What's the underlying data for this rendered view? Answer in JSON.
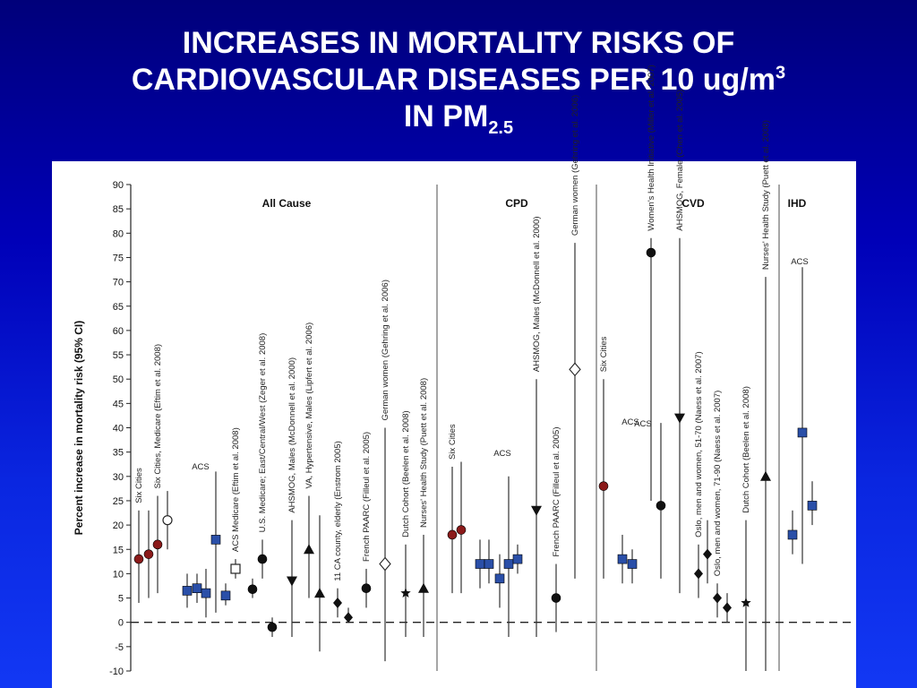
{
  "slide": {
    "title_line1": "INCREASES IN MORTALITY RISKS OF",
    "title_line2_main": "CARDIOVASCULAR DISEASES PER 10 ug/m",
    "title_line2_sup": "3",
    "title_line3_main": "IN PM",
    "title_line3_sub": "2.5"
  },
  "chart_data": {
    "type": "scatter",
    "ylabel": "Percent increase in mortality risk (95% CI)",
    "ylim": [
      -10,
      90
    ],
    "yticks": [
      -10,
      -5,
      0,
      5,
      10,
      15,
      20,
      25,
      30,
      35,
      40,
      45,
      50,
      55,
      60,
      65,
      70,
      75,
      80,
      85,
      90
    ],
    "reference_line": 0,
    "panels": [
      "All Cause",
      "CPD",
      "CVD",
      "IHD"
    ],
    "group_labels": [
      "ACS",
      "ACS",
      "ACS",
      "ACS",
      "ACS"
    ],
    "colors": {
      "six_cities": "#8b1a1a",
      "acs": "#2a4fa8",
      "black": "#111111",
      "errorbar": "#333333"
    },
    "points": [
      {
        "panel": "All Cause",
        "label": "Six Cities",
        "estimate": 13,
        "lower": 4,
        "upper": 23,
        "marker": "circle",
        "color": "#8b1a1a"
      },
      {
        "panel": "All Cause",
        "label": "",
        "estimate": 14,
        "lower": 5,
        "upper": 23,
        "marker": "circle",
        "color": "#8b1a1a"
      },
      {
        "panel": "All Cause",
        "label": "Six Cities, Medicare (Eftim et al. 2008)",
        "estimate": 16,
        "lower": 6,
        "upper": 26,
        "marker": "circle",
        "color": "#8b1a1a"
      },
      {
        "panel": "All Cause",
        "label": "",
        "estimate": 21,
        "lower": 15,
        "upper": 27,
        "marker": "open-circle",
        "color": "#111111"
      },
      {
        "panel": "All Cause",
        "label": "",
        "estimate": 6.5,
        "lower": 3,
        "upper": 10,
        "marker": "square",
        "color": "#2a4fa8"
      },
      {
        "panel": "All Cause",
        "label": "",
        "estimate": 7,
        "lower": 4,
        "upper": 10,
        "marker": "square",
        "color": "#2a4fa8"
      },
      {
        "panel": "All Cause",
        "label": "",
        "estimate": 6,
        "lower": 1,
        "upper": 11,
        "marker": "square",
        "color": "#2a4fa8"
      },
      {
        "panel": "All Cause",
        "label": "",
        "estimate": 17,
        "lower": 2,
        "upper": 31,
        "marker": "square",
        "color": "#2a4fa8"
      },
      {
        "panel": "All Cause",
        "label": "",
        "estimate": 5.5,
        "lower": 3.5,
        "upper": 8,
        "marker": "square",
        "color": "#2a4fa8"
      },
      {
        "panel": "All Cause",
        "label": "ACS Medicare (Eftim et al. 2008)",
        "estimate": 11,
        "lower": 9,
        "upper": 13,
        "marker": "open-square",
        "color": "#111111"
      },
      {
        "panel": "All Cause",
        "label": "",
        "estimate": 6.8,
        "lower": 5,
        "upper": 9,
        "marker": "circle",
        "color": "#111111"
      },
      {
        "panel": "All Cause",
        "label": "U.S. Medicare; East/Central/West (Zeger et al. 2008)",
        "estimate": 13,
        "lower": 9,
        "upper": 17,
        "marker": "circle",
        "color": "#111111"
      },
      {
        "panel": "All Cause",
        "label": "",
        "estimate": -1,
        "lower": -3,
        "upper": 1,
        "marker": "circle",
        "color": "#111111"
      },
      {
        "panel": "All Cause",
        "label": "AHSMOG, Males (McDonnell et al. 2000)",
        "estimate": 8.5,
        "lower": -3,
        "upper": 21,
        "marker": "triangle-down",
        "color": "#111111"
      },
      {
        "panel": "All Cause",
        "label": "VA, Hypertensive, Males (Lipfert et al. 2006)",
        "estimate": 15,
        "lower": 5,
        "upper": 26,
        "marker": "triangle-up",
        "color": "#111111"
      },
      {
        "panel": "All Cause",
        "label": "",
        "estimate": 6,
        "lower": -6,
        "upper": 22,
        "marker": "triangle-up",
        "color": "#111111"
      },
      {
        "panel": "All Cause",
        "label": "11 CA county, elderly (Enstrom 2005)",
        "estimate": 4,
        "lower": 1,
        "upper": 7,
        "marker": "diamond",
        "color": "#111111"
      },
      {
        "panel": "All Cause",
        "label": "",
        "estimate": 1,
        "lower": 0,
        "upper": 3,
        "marker": "diamond",
        "color": "#111111"
      },
      {
        "panel": "All Cause",
        "label": "French PAARC (Filleul et al. 2005)",
        "estimate": 7,
        "lower": 3,
        "upper": 11,
        "marker": "circle",
        "color": "#111111"
      },
      {
        "panel": "All Cause",
        "label": "German women (Gehring et al. 2006)",
        "estimate": 12,
        "lower": -8,
        "upper": 40,
        "marker": "open-diamond",
        "color": "#111111"
      },
      {
        "panel": "All Cause",
        "label": "Dutch Cohort (Beelen et al. 2008)",
        "estimate": 6,
        "lower": -3,
        "upper": 16,
        "marker": "star",
        "color": "#111111"
      },
      {
        "panel": "All Cause",
        "label": "Nurses' Health Study (Puett et al. 2008)",
        "estimate": 7,
        "lower": -3,
        "upper": 18,
        "marker": "triangle-up",
        "color": "#111111"
      },
      {
        "panel": "CPD",
        "label": "Six Cities",
        "estimate": 18,
        "lower": 6,
        "upper": 32,
        "marker": "circle",
        "color": "#8b1a1a"
      },
      {
        "panel": "CPD",
        "label": "",
        "estimate": 19,
        "lower": 6,
        "upper": 33,
        "marker": "circle",
        "color": "#8b1a1a"
      },
      {
        "panel": "CPD",
        "label": "",
        "estimate": 12,
        "lower": 7,
        "upper": 17,
        "marker": "square",
        "color": "#2a4fa8"
      },
      {
        "panel": "CPD",
        "label": "",
        "estimate": 12,
        "lower": 8,
        "upper": 17,
        "marker": "square",
        "color": "#2a4fa8"
      },
      {
        "panel": "CPD",
        "label": "",
        "estimate": 9,
        "lower": 3,
        "upper": 14,
        "marker": "square",
        "color": "#2a4fa8"
      },
      {
        "panel": "CPD",
        "label": "",
        "estimate": 12,
        "lower": -3,
        "upper": 30,
        "marker": "square",
        "color": "#2a4fa8"
      },
      {
        "panel": "CPD",
        "label": "",
        "estimate": 13,
        "lower": 10,
        "upper": 16,
        "marker": "square",
        "color": "#2a4fa8"
      },
      {
        "panel": "CPD",
        "label": "AHSMOG, Males (McDonnell et al. 2000)",
        "estimate": 23,
        "lower": -3,
        "upper": 50,
        "marker": "triangle-down",
        "color": "#111111"
      },
      {
        "panel": "CPD",
        "label": "French PAARC (Filleul et al. 2005)",
        "estimate": 5,
        "lower": -2,
        "upper": 12,
        "marker": "circle",
        "color": "#111111"
      },
      {
        "panel": "CPD",
        "label": "German women (Gehring et al. 2006)",
        "estimate": 52,
        "lower": 9,
        "upper": 78,
        "marker": "open-diamond",
        "color": "#111111"
      },
      {
        "panel": "CVD",
        "label": "Six Cities",
        "estimate": 28,
        "lower": 9,
        "upper": 50,
        "marker": "circle",
        "color": "#8b1a1a"
      },
      {
        "panel": "CVD",
        "label": "",
        "estimate": 13,
        "lower": 8,
        "upper": 18,
        "marker": "square",
        "color": "#2a4fa8"
      },
      {
        "panel": "CVD",
        "label": "",
        "estimate": 12,
        "lower": 8,
        "upper": 15,
        "marker": "square",
        "color": "#2a4fa8"
      },
      {
        "panel": "CVD",
        "label": "Women's Health Initiative (Miller et al. 2007)",
        "estimate": 76,
        "lower": 25,
        "upper": 79,
        "marker": "circle",
        "color": "#111111"
      },
      {
        "panel": "CVD",
        "label": "",
        "estimate": 24,
        "lower": 9,
        "upper": 41,
        "marker": "circle",
        "color": "#111111"
      },
      {
        "panel": "CVD",
        "label": "AHSMOG, Female (Chen et al. 2005)",
        "estimate": 42,
        "lower": 6,
        "upper": 79,
        "marker": "triangle-down",
        "color": "#111111"
      },
      {
        "panel": "CVD",
        "label": "Oslo, men and women, 51-70 (Naess et al. 2007)",
        "estimate": 10,
        "lower": 5,
        "upper": 16,
        "marker": "diamond",
        "color": "#111111"
      },
      {
        "panel": "CVD",
        "label": "",
        "estimate": 14,
        "lower": 8,
        "upper": 21,
        "marker": "diamond",
        "color": "#111111"
      },
      {
        "panel": "CVD",
        "label": "Oslo, men and women, 71-90 (Naess et al. 2007)",
        "estimate": 5,
        "lower": 1,
        "upper": 8,
        "marker": "diamond",
        "color": "#111111"
      },
      {
        "panel": "CVD",
        "label": "",
        "estimate": 3,
        "lower": 0,
        "upper": 6,
        "marker": "diamond",
        "color": "#111111"
      },
      {
        "panel": "CVD",
        "label": "Dutch Cohort (Beelen et al. 2008)",
        "estimate": 4,
        "lower": -10,
        "upper": 21,
        "marker": "star",
        "color": "#111111"
      },
      {
        "panel": "CVD",
        "label": "Nurses' Health Study (Puett et al. 2008)",
        "estimate": 30,
        "lower": -10,
        "upper": 71,
        "marker": "triangle-up",
        "color": "#111111"
      },
      {
        "panel": "IHD",
        "label": "",
        "estimate": 18,
        "lower": 14,
        "upper": 23,
        "marker": "square",
        "color": "#2a4fa8"
      },
      {
        "panel": "IHD",
        "label": "",
        "estimate": 39,
        "lower": 12,
        "upper": 73,
        "marker": "square",
        "color": "#2a4fa8"
      },
      {
        "panel": "IHD",
        "label": "",
        "estimate": 24,
        "lower": 20,
        "upper": 29,
        "marker": "square",
        "color": "#2a4fa8"
      }
    ]
  }
}
